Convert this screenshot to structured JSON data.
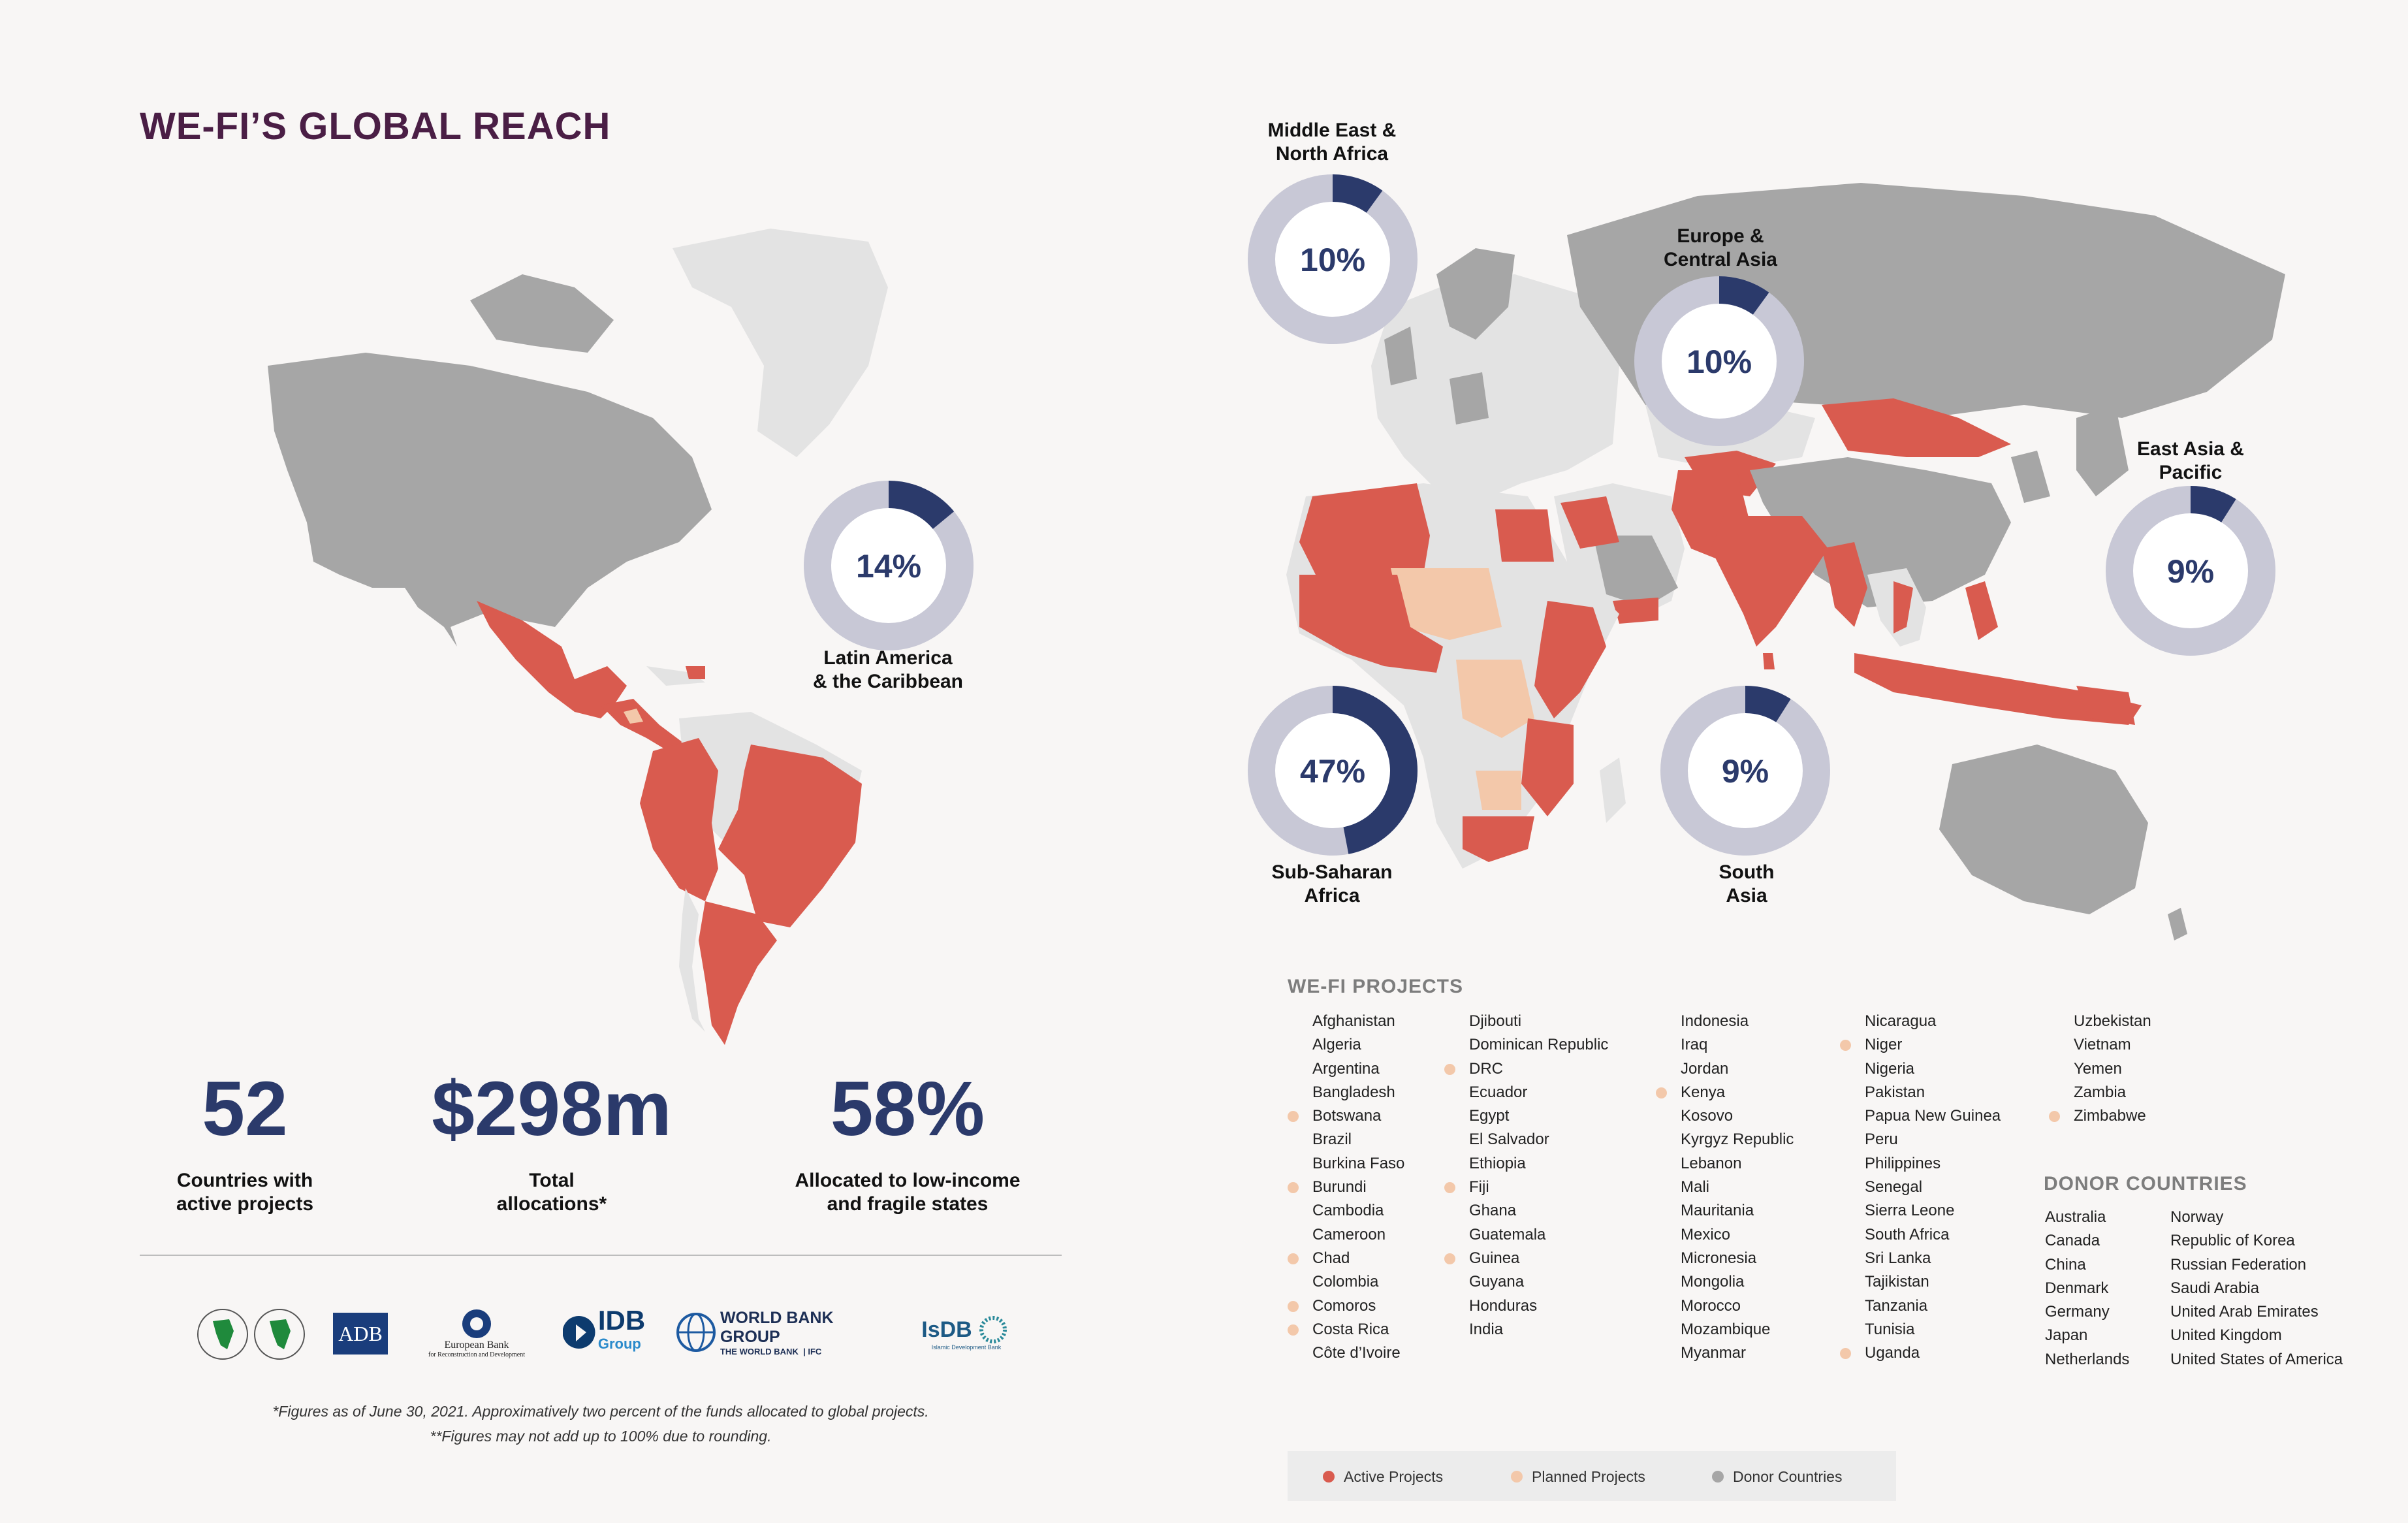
{
  "title": "WE-FI’S GLOBAL REACH",
  "colors": {
    "active": "#d95b4f",
    "planned": "#f3c8aa",
    "donor": "#a6a6a6",
    "other": "#e3e3e3",
    "donut_fill": "#2b3a6b",
    "donut_track": "#c8c8d6"
  },
  "donuts": [
    {
      "id": "lac",
      "value": 14,
      "value_text": "14%",
      "label_line1": "Latin America",
      "label_line2": "& the Caribbean"
    },
    {
      "id": "mena",
      "value": 10,
      "value_text": "10%",
      "label_line1": "Middle East &",
      "label_line2": "North Africa"
    },
    {
      "id": "eca",
      "value": 10,
      "value_text": "10%",
      "label_line1": "Europe &",
      "label_line2": "Central Asia"
    },
    {
      "id": "eap",
      "value": 9,
      "value_text": "9%",
      "label_line1": "East Asia &",
      "label_line2": "Pacific"
    },
    {
      "id": "ssa",
      "value": 47,
      "value_text": "47%",
      "label_line1": "Sub-Saharan",
      "label_line2": "Africa"
    },
    {
      "id": "sa",
      "value": 9,
      "value_text": "9%",
      "label_line1": "South",
      "label_line2": "Asia"
    }
  ],
  "stats": [
    {
      "value": "52",
      "caption_line1": "Countries with",
      "caption_line2": "active projects"
    },
    {
      "value": "$298m",
      "caption_line1": "Total",
      "caption_line2": "allocations*"
    },
    {
      "value": "58%",
      "caption_line1": "Allocated to low-income",
      "caption_line2": "and fragile states"
    }
  ],
  "logos": {
    "adb": "ADB",
    "ebrd_line1": "European Bank",
    "ebrd_line2": "for Reconstruction and Development",
    "idb_main": "IDB",
    "idb_sub": "Group",
    "wbg_main": "WORLD BANK GROUP",
    "wbg_sub1": "THE WORLD BANK",
    "wbg_sub2": "IFC",
    "isdb_main": "IsDB",
    "isdb_sub": "Islamic Development Bank"
  },
  "footnote_line1": "*Figures as of June 30, 2021. Approximatively two percent of the funds allocated to global projects.",
  "footnote_line2": "**Figures may not add up to 100% due to rounding.",
  "projects_title": "WE-FI PROJECTS",
  "projects_columns": [
    [
      {
        "name": "Afghanistan",
        "planned": false
      },
      {
        "name": "Algeria",
        "planned": false
      },
      {
        "name": "Argentina",
        "planned": false
      },
      {
        "name": "Bangladesh",
        "planned": false
      },
      {
        "name": "Botswana",
        "planned": true
      },
      {
        "name": "Brazil",
        "planned": false
      },
      {
        "name": "Burkina Faso",
        "planned": false
      },
      {
        "name": "Burundi",
        "planned": true
      },
      {
        "name": "Cambodia",
        "planned": false
      },
      {
        "name": "Cameroon",
        "planned": false
      },
      {
        "name": "Chad",
        "planned": true
      },
      {
        "name": "Colombia",
        "planned": false
      },
      {
        "name": "Comoros",
        "planned": true
      },
      {
        "name": "Costa Rica",
        "planned": true
      },
      {
        "name": "Côte d’Ivoire",
        "planned": false
      }
    ],
    [
      {
        "name": "Djibouti",
        "planned": false
      },
      {
        "name": "Dominican Republic",
        "planned": false
      },
      {
        "name": "DRC",
        "planned": true
      },
      {
        "name": "Ecuador",
        "planned": false
      },
      {
        "name": "Egypt",
        "planned": false
      },
      {
        "name": "El Salvador",
        "planned": false
      },
      {
        "name": "Ethiopia",
        "planned": false
      },
      {
        "name": "Fiji",
        "planned": true
      },
      {
        "name": "Ghana",
        "planned": false
      },
      {
        "name": "Guatemala",
        "planned": false
      },
      {
        "name": "Guinea",
        "planned": true
      },
      {
        "name": "Guyana",
        "planned": false
      },
      {
        "name": "Honduras",
        "planned": false
      },
      {
        "name": "India",
        "planned": false
      }
    ],
    [
      {
        "name": "Indonesia",
        "planned": false
      },
      {
        "name": "Iraq",
        "planned": false
      },
      {
        "name": "Jordan",
        "planned": false
      },
      {
        "name": "Kenya",
        "planned": true
      },
      {
        "name": "Kosovo",
        "planned": false
      },
      {
        "name": "Kyrgyz Republic",
        "planned": false
      },
      {
        "name": "Lebanon",
        "planned": false
      },
      {
        "name": "Mali",
        "planned": false
      },
      {
        "name": "Mauritania",
        "planned": false
      },
      {
        "name": "Mexico",
        "planned": false
      },
      {
        "name": "Micronesia",
        "planned": false
      },
      {
        "name": "Mongolia",
        "planned": false
      },
      {
        "name": "Morocco",
        "planned": false
      },
      {
        "name": "Mozambique",
        "planned": false
      },
      {
        "name": "Myanmar",
        "planned": false
      }
    ],
    [
      {
        "name": "Nicaragua",
        "planned": false
      },
      {
        "name": "Niger",
        "planned": true
      },
      {
        "name": "Nigeria",
        "planned": false
      },
      {
        "name": "Pakistan",
        "planned": false
      },
      {
        "name": "Papua New Guinea",
        "planned": false
      },
      {
        "name": "Peru",
        "planned": false
      },
      {
        "name": "Philippines",
        "planned": false
      },
      {
        "name": "Senegal",
        "planned": false
      },
      {
        "name": "Sierra Leone",
        "planned": false
      },
      {
        "name": "South Africa",
        "planned": false
      },
      {
        "name": "Sri Lanka",
        "planned": false
      },
      {
        "name": "Tajikistan",
        "planned": false
      },
      {
        "name": "Tanzania",
        "planned": false
      },
      {
        "name": "Tunisia",
        "planned": false
      },
      {
        "name": "Uganda",
        "planned": true
      }
    ],
    [
      {
        "name": "Uzbekistan",
        "planned": false
      },
      {
        "name": "Vietnam",
        "planned": false
      },
      {
        "name": "Yemen",
        "planned": false
      },
      {
        "name": "Zambia",
        "planned": false
      },
      {
        "name": "Zimbabwe",
        "planned": true
      }
    ]
  ],
  "donors_title": "DONOR COUNTRIES",
  "donors_columns": [
    [
      "Australia",
      "Canada",
      "China",
      "Denmark",
      "Germany",
      "Japan",
      "Netherlands"
    ],
    [
      "Norway",
      "Republic of Korea",
      "Russian Federation",
      "Saudi Arabia",
      "United Arab Emirates",
      "United Kingdom",
      "United States of America"
    ]
  ],
  "legend": {
    "active": "Active Projects",
    "planned": "Planned Projects",
    "donor": "Donor Countries"
  }
}
